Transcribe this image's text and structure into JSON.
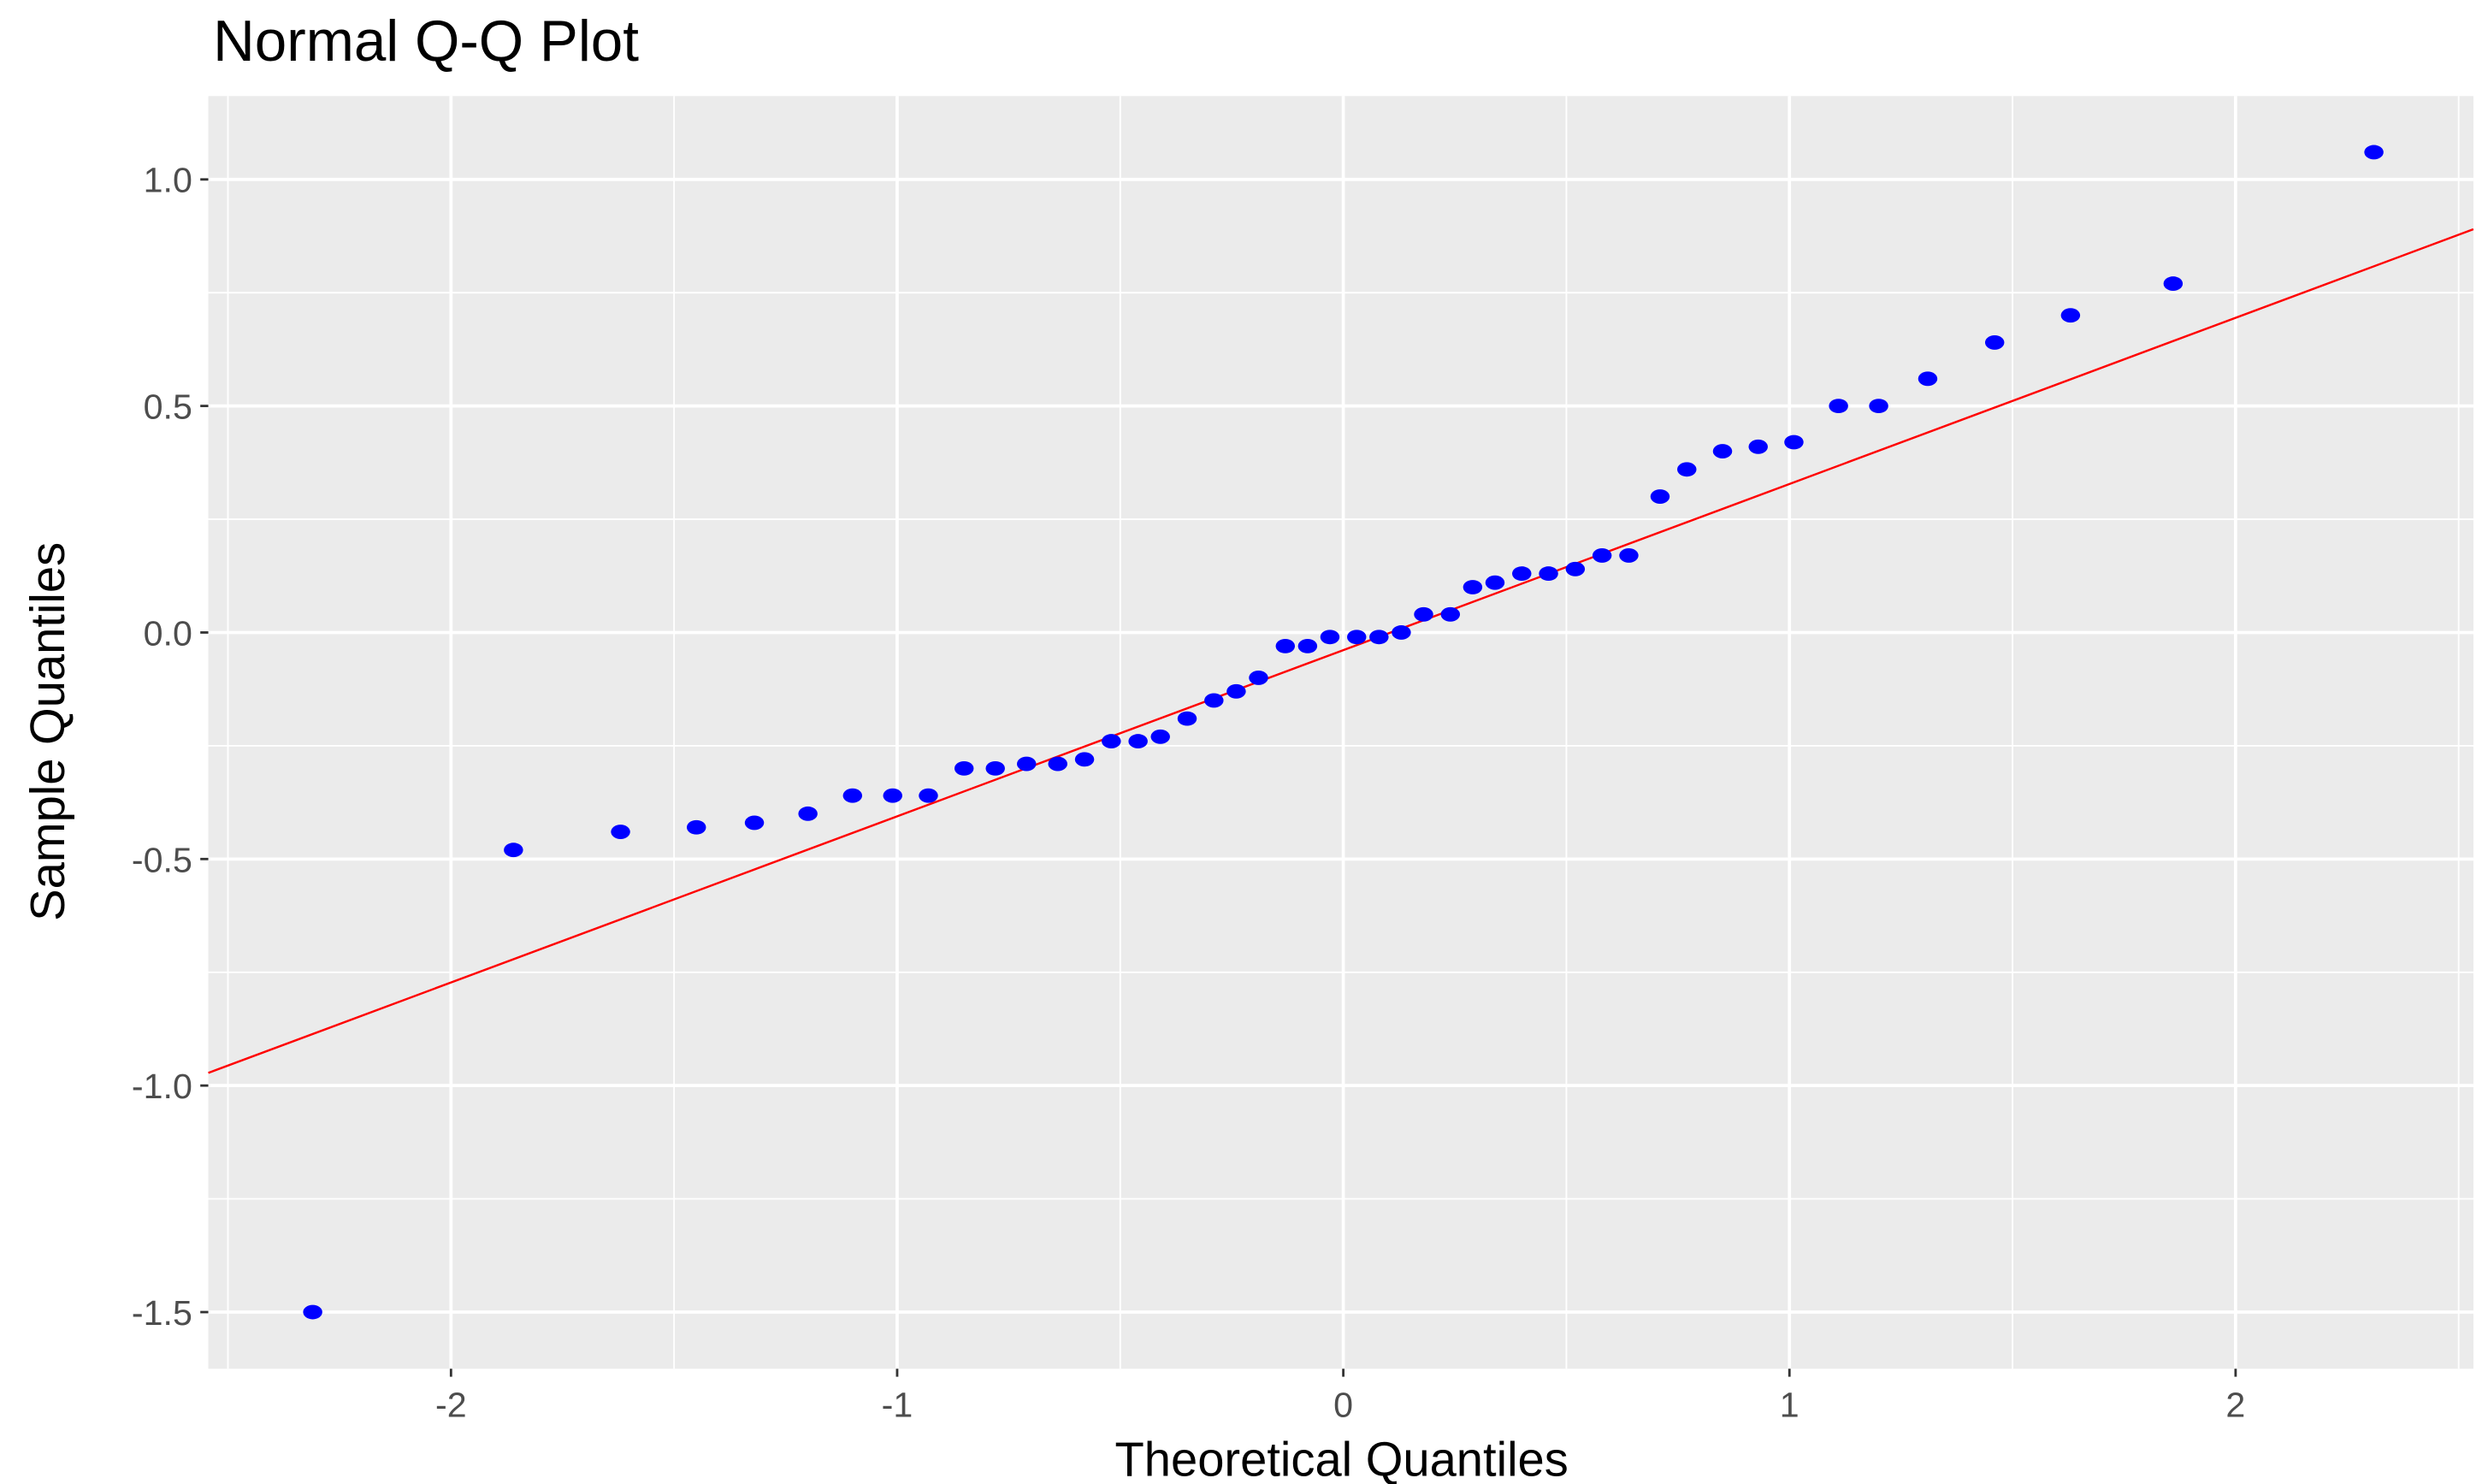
{
  "chart_data": {
    "type": "scatter",
    "title": "Normal Q-Q Plot",
    "x_label": "Theoretical Quantiles",
    "y_label": "Sample Quantiles",
    "xlim": [
      -2.544,
      2.533
    ],
    "ylim": [
      -1.625,
      1.184
    ],
    "xticks": [
      -2,
      -1,
      0,
      1,
      2
    ],
    "yticks": [
      {
        "value": -1.5,
        "label": "-1.5"
      },
      {
        "value": -1,
        "label": "-1.0"
      },
      {
        "value": -0.5,
        "label": "-0.5"
      },
      {
        "value": 0,
        "label": "0.0"
      },
      {
        "value": 0.5,
        "label": "0.5"
      },
      {
        "value": 1,
        "label": "1.0"
      }
    ],
    "x_minor_ticks": [
      -2.5,
      -1.5,
      -0.5,
      0.5,
      1.5,
      2.5
    ],
    "y_minor_ticks": [
      -1.25,
      -0.75,
      -0.25,
      0.25,
      0.75
    ],
    "grid": true,
    "series": [
      {
        "color": "#0000ff",
        "x": [
          -2.31,
          -1.86,
          -1.62,
          -1.45,
          -1.32,
          -1.2,
          -1.1,
          -1.01,
          -0.93,
          -0.85,
          -0.78,
          -0.71,
          -0.64,
          -0.58,
          -0.52,
          -0.46,
          -0.41,
          -0.35,
          -0.29,
          -0.24,
          -0.19,
          -0.13,
          -0.08,
          -0.03,
          0.03,
          0.08,
          0.13,
          0.18,
          0.24,
          0.29,
          0.34,
          0.4,
          0.46,
          0.52,
          0.58,
          0.64,
          0.71,
          0.77,
          0.85,
          0.93,
          1.01,
          1.11,
          1.2,
          1.31,
          1.46,
          1.63,
          1.86,
          2.31
        ],
        "values": [
          -1.5,
          -0.48,
          -0.44,
          -0.43,
          -0.42,
          -0.4,
          -0.36,
          -0.36,
          -0.36,
          -0.3,
          -0.3,
          -0.29,
          -0.29,
          -0.28,
          -0.24,
          -0.24,
          -0.23,
          -0.19,
          -0.15,
          -0.13,
          -0.1,
          -0.03,
          -0.03,
          -0.01,
          -0.01,
          -0.01,
          0,
          0.04,
          0.04,
          0.1,
          0.11,
          0.13,
          0.13,
          0.14,
          0.17,
          0.17,
          0.3,
          0.36,
          0.4,
          0.41,
          0.42,
          0.5,
          0.5,
          0.56,
          0.64,
          0.7,
          0.77,
          1.06
        ]
      }
    ],
    "reference_line": {
      "color": "#ff0000",
      "x": [
        -2.544,
        2.533
      ],
      "values": [
        -0.972,
        0.89
      ]
    }
  }
}
